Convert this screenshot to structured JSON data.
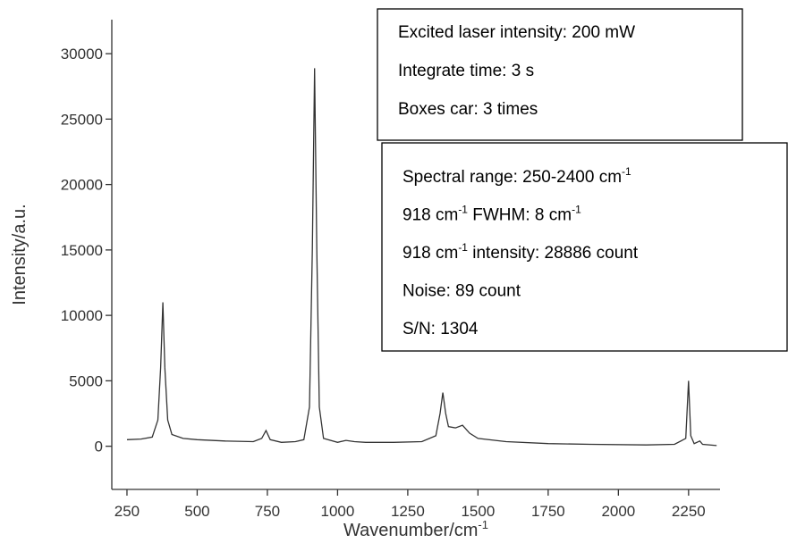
{
  "chart_data": {
    "type": "line",
    "xlabel": [
      "Wavenumber/cm",
      "-1"
    ],
    "ylabel": "Intensity/a.u.",
    "color": "#333333",
    "x": [
      250,
      300,
      340,
      360,
      370,
      378,
      385,
      395,
      410,
      450,
      500,
      600,
      700,
      730,
      745,
      760,
      800,
      850,
      880,
      900,
      910,
      918,
      926,
      935,
      950,
      1000,
      1030,
      1060,
      1100,
      1200,
      1300,
      1350,
      1365,
      1375,
      1385,
      1395,
      1420,
      1445,
      1470,
      1500,
      1600,
      1750,
      1900,
      2100,
      2200,
      2240,
      2250,
      2258,
      2270,
      2290,
      2300,
      2350
    ],
    "values": [
      500,
      550,
      700,
      2000,
      6000,
      11000,
      6000,
      2000,
      900,
      600,
      500,
      400,
      350,
      600,
      1200,
      500,
      300,
      350,
      500,
      3000,
      15000,
      28886,
      15000,
      3000,
      600,
      300,
      450,
      350,
      300,
      300,
      350,
      800,
      2500,
      4100,
      2500,
      1500,
      1400,
      1600,
      1000,
      600,
      350,
      200,
      150,
      100,
      150,
      600,
      5000,
      800,
      200,
      400,
      150,
      50
    ],
    "xlim": [
      196,
      2362
    ],
    "ylim": [
      -3300,
      32600
    ],
    "xticks": [
      250,
      500,
      750,
      1000,
      1250,
      1500,
      1750,
      2000,
      2250
    ],
    "yticks": [
      0,
      5000,
      10000,
      15000,
      20000,
      25000,
      30000
    ],
    "annotations": [
      {
        "lines": [
          [
            "Excited laser intensity: 200 mW"
          ],
          [
            "Integrate time: 3 s"
          ],
          [
            "Boxes car: 3 times"
          ]
        ]
      },
      {
        "lines": [
          [
            "Spectral range: 250-2400 cm",
            "-1"
          ],
          [
            "918 cm",
            "-1",
            " FWHM: 8 cm",
            "-1"
          ],
          [
            "918 cm",
            "-1",
            " intensity: 28886 count"
          ],
          [
            "Noise: 89 count"
          ],
          [
            "S/N: 1304"
          ]
        ]
      }
    ]
  }
}
